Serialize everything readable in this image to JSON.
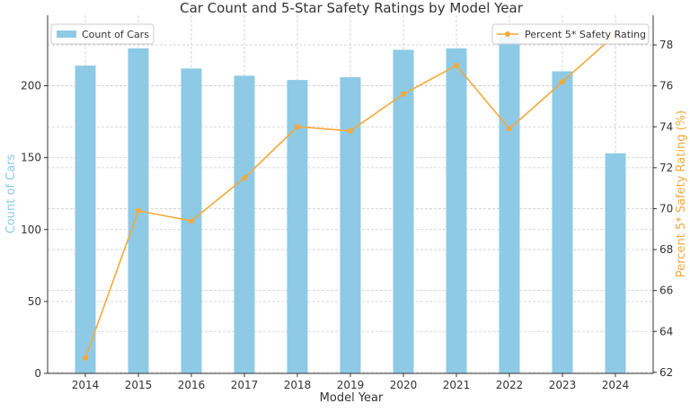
{
  "chart_data": {
    "type": "bar+line",
    "title": "Car Count and 5-Star Safety Ratings by Model Year",
    "xlabel": "Model Year",
    "ylabel_left": "Count of Cars",
    "ylabel_right": "Percent 5* Safety Rating (%)",
    "categories": [
      "2014",
      "2015",
      "2016",
      "2017",
      "2018",
      "2019",
      "2020",
      "2021",
      "2022",
      "2023",
      "2024"
    ],
    "series": [
      {
        "name": "Count of Cars",
        "type": "bar",
        "axis": "left",
        "color": "#8ecae6",
        "values": [
          214,
          226,
          212,
          207,
          204,
          206,
          225,
          226,
          234,
          210,
          153
        ]
      },
      {
        "name": "Percent 5* Safety Rating",
        "type": "line",
        "axis": "right",
        "color": "#f4a93a",
        "values": [
          62.7,
          69.9,
          69.4,
          71.5,
          74.0,
          73.8,
          75.6,
          77.0,
          73.9,
          76.2,
          78.5
        ]
      }
    ],
    "ylim_left": [
      0,
      249
    ],
    "ylim_right": [
      61.95,
      79.45
    ],
    "yticks_left": [
      0,
      50,
      100,
      150,
      200
    ],
    "yticks_right": [
      62,
      64,
      66,
      68,
      70,
      72,
      74,
      76,
      78
    ],
    "grid": true,
    "legend_left": "top-left",
    "legend_right": "top-right",
    "left_axis_color": "#8ecae6",
    "right_axis_color": "#f4a93a"
  }
}
